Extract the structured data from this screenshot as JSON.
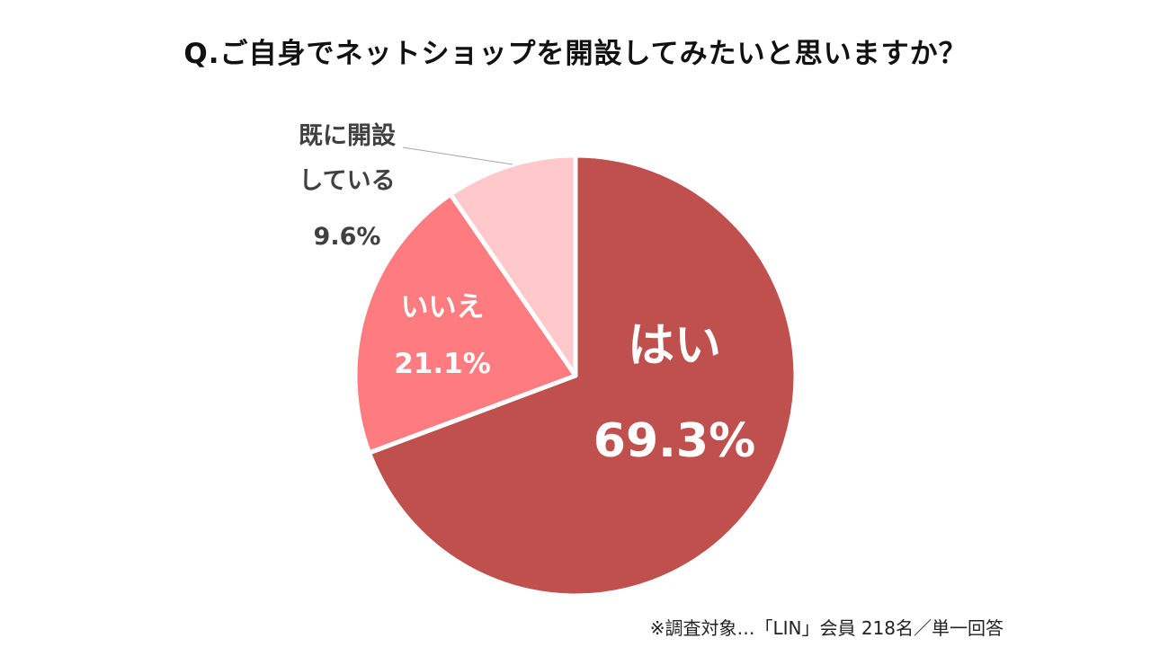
{
  "title": "Q.ご自身でネットショップを開設してみたいと思いますか？",
  "note": "※調査対象…「LIN」会員 218名／単一回答",
  "chart_data": {
    "type": "pie",
    "title": "Q.ご自身でネットショップを開設してみたいと思いますか？",
    "slices": [
      {
        "label_lines": [
          "はい"
        ],
        "value": 69.3,
        "value_label": "69.3%",
        "color": "#c0504d",
        "text_color": "#ffffff"
      },
      {
        "label_lines": [
          "いいえ"
        ],
        "value": 21.1,
        "value_label": "21.1%",
        "color": "#fe7c80",
        "text_color": "#ffffff"
      },
      {
        "label_lines": [
          "既に開設",
          "している"
        ],
        "value": 9.6,
        "value_label": "9.6%",
        "color": "#ffc9cb",
        "text_color": "#404040"
      }
    ],
    "start_angle_deg": 0,
    "direction": "clockwise",
    "legend": "none"
  }
}
